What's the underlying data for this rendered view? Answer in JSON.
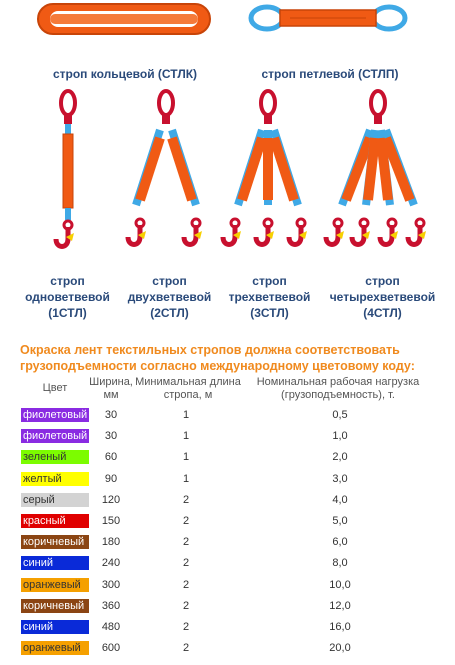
{
  "slings_top": [
    {
      "label": "строп кольцевой (СТЛК)"
    },
    {
      "label": "строп петлевой (СТЛП)"
    }
  ],
  "slings": [
    {
      "line1": "строп",
      "line2": "одноветвевой",
      "line3": "(1СТЛ)"
    },
    {
      "line1": "строп",
      "line2": "двухветвевой",
      "line3": "(2СТЛ)"
    },
    {
      "line1": "строп",
      "line2": "трехветвевой",
      "line3": "(3СТЛ)"
    },
    {
      "line1": "строп",
      "line2": "четырехветвевой",
      "line3": "(4СТЛ)"
    }
  ],
  "notice": "Окраска лент текстильных стропов должна соответствовать грузоподъемности согласно международному цветовому коду:",
  "table": {
    "headers": {
      "color": "Цвет",
      "width_line1": "Ширина,",
      "width_line2": "мм",
      "minlen_line1": "Минимальная длина",
      "minlen_line2": "стропа, м",
      "load_line1": "Номинальная рабочая нагрузка",
      "load_line2": "(грузоподъемность), т."
    },
    "rows": [
      {
        "color": "фиолетовый",
        "bg": "#8a2be2",
        "fg": "#ffffff",
        "width": "30",
        "minlen": "1",
        "load": "0,5"
      },
      {
        "color": "фиолетовый",
        "bg": "#8a2be2",
        "fg": "#ffffff",
        "width": "30",
        "minlen": "1",
        "load": "1,0"
      },
      {
        "color": "зеленый",
        "bg": "#7cfc00",
        "fg": "#333333",
        "width": "60",
        "minlen": "1",
        "load": "2,0"
      },
      {
        "color": "желтый",
        "bg": "#ffff00",
        "fg": "#333333",
        "width": "90",
        "minlen": "1",
        "load": "3,0"
      },
      {
        "color": "серый",
        "bg": "#d3d3d3",
        "fg": "#333333",
        "width": "120",
        "minlen": "2",
        "load": "4,0"
      },
      {
        "color": "красный",
        "bg": "#e00000",
        "fg": "#ffffff",
        "width": "150",
        "minlen": "2",
        "load": "5,0"
      },
      {
        "color": "коричневый",
        "bg": "#8b4513",
        "fg": "#ffffff",
        "width": "180",
        "minlen": "2",
        "load": "6,0"
      },
      {
        "color": "синий",
        "bg": "#0a2ad8",
        "fg": "#ffffff",
        "width": "240",
        "minlen": "2",
        "load": "8,0"
      },
      {
        "color": "оранжевый",
        "bg": "#f5a000",
        "fg": "#333333",
        "width": "300",
        "minlen": "2",
        "load": "10,0"
      },
      {
        "color": "коричневый",
        "bg": "#8b4513",
        "fg": "#ffffff",
        "width": "360",
        "minlen": "2",
        "load": "12,0"
      },
      {
        "color": "синий",
        "bg": "#0a2ad8",
        "fg": "#ffffff",
        "width": "480",
        "minlen": "2",
        "load": "16,0"
      },
      {
        "color": "оранжевый",
        "bg": "#f5a000",
        "fg": "#333333",
        "width": "600",
        "minlen": "2",
        "load": "20,0"
      }
    ]
  },
  "colors": {
    "strap": "#f05a14",
    "strap_edge": "#c84408",
    "sleeve": "#3fa9e6",
    "hardware": "#c8102e",
    "caption": "#2a4a7a",
    "notice": "#f08a1e"
  }
}
